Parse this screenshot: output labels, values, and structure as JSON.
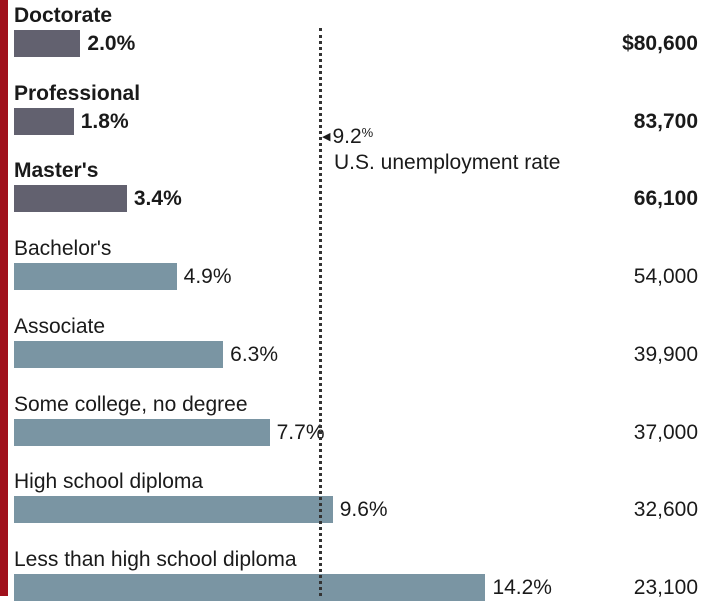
{
  "chart_data": {
    "type": "bar",
    "orientation": "horizontal",
    "categories": [
      "Doctorate",
      "Professional",
      "Master's",
      "Bachelor's",
      "Associate",
      "Some college, no degree",
      "High school diploma",
      "Less than high school diploma"
    ],
    "series": [
      {
        "values": [
          2.0,
          1.8,
          3.4,
          4.9,
          6.3,
          7.7,
          9.6,
          14.2
        ]
      }
    ],
    "value_labels": [
      "2.0%",
      "1.8%",
      "3.4%",
      "4.9%",
      "6.3%",
      "7.7%",
      "9.6%",
      "14.2%"
    ],
    "earnings": [
      80600,
      83700,
      66100,
      54000,
      39900,
      37000,
      32600,
      23100
    ],
    "earnings_labels": [
      "$80,600",
      "83,700",
      "66,100",
      "54,000",
      "39,900",
      "37,000",
      "32,600",
      "23,100"
    ],
    "emphasized": [
      true,
      true,
      true,
      false,
      false,
      false,
      false,
      false
    ],
    "colors": {
      "emphasized_bar": "#62616f",
      "bar": "#7a95a3",
      "accent": "#a0111c",
      "reference_line": "#333333"
    },
    "reference_line": {
      "value": 9.2,
      "label_value": "9.2",
      "label_unit": "%",
      "label": "U.S. unemployment rate"
    },
    "xlim": [
      0,
      15
    ],
    "title": "",
    "xlabel": "",
    "ylabel": ""
  }
}
